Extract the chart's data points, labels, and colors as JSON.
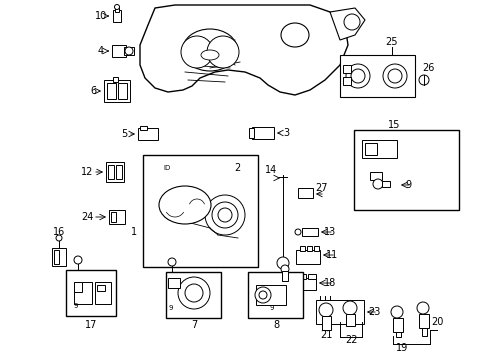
{
  "bg_color": "#ffffff",
  "fig_width": 4.89,
  "fig_height": 3.6,
  "dpi": 100,
  "lw": 0.7,
  "ec": "#000000",
  "fc": "#ffffff"
}
